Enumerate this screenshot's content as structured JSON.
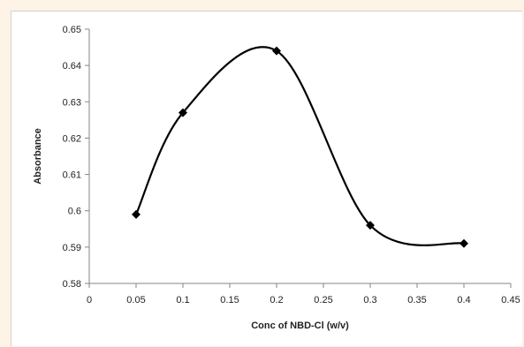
{
  "chart_data": {
    "type": "scatter",
    "title": "",
    "xlabel": "Conc of NBD-Cl (w/v)",
    "ylabel": "Absorbance",
    "xlim": [
      0,
      0.45
    ],
    "ylim": [
      0.58,
      0.65
    ],
    "x_ticks": [
      "0",
      "0.05",
      "0.1",
      "0.15",
      "0.2",
      "0.25",
      "0.3",
      "0.35",
      "0.4",
      "0.45"
    ],
    "y_ticks": [
      "0.58",
      "0.59",
      "0.6",
      "0.61",
      "0.62",
      "0.63",
      "0.64",
      "0.65"
    ],
    "grid": false,
    "legend": "none",
    "series": [
      {
        "x": [
          0.05,
          0.1,
          0.2,
          0.3,
          0.4
        ],
        "y": [
          0.599,
          0.627,
          0.644,
          0.596,
          0.591
        ],
        "line": "smoothed",
        "marker": "diamond",
        "color": "#000000"
      }
    ]
  }
}
